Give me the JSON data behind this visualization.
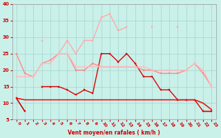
{
  "xlabel": "Vent moyen/en rafales ( km/h )",
  "background_color": "#caf0ea",
  "grid_color": "#aad8d2",
  "x": [
    0,
    1,
    2,
    3,
    4,
    5,
    6,
    7,
    8,
    9,
    10,
    11,
    12,
    13,
    14,
    15,
    16,
    17,
    18,
    19,
    20,
    21,
    22,
    23
  ],
  "series": [
    {
      "color": "#cc0000",
      "linewidth": 1.0,
      "marker": null,
      "values": [
        11.5,
        7.5,
        null,
        null,
        null,
        null,
        null,
        null,
        null,
        null,
        null,
        null,
        null,
        null,
        null,
        null,
        null,
        null,
        null,
        null,
        null,
        null,
        7.5,
        7.5
      ]
    },
    {
      "color": "#dd0000",
      "linewidth": 1.0,
      "marker": "s",
      "markersize": 2,
      "values": [
        11.5,
        7.5,
        null,
        15,
        15,
        15,
        14,
        12.5,
        14,
        13,
        25,
        25,
        22.5,
        25,
        22,
        18,
        18,
        14,
        14,
        11,
        11,
        11,
        7.5,
        7.5
      ]
    },
    {
      "color": "#ee1111",
      "linewidth": 1.2,
      "marker": null,
      "values": [
        11.5,
        11,
        11,
        11,
        11,
        11,
        11,
        11,
        11,
        11,
        11,
        11,
        11,
        11,
        11,
        11,
        11,
        11,
        11,
        11,
        11,
        11,
        10,
        8
      ]
    },
    {
      "color": "#ff8888",
      "linewidth": 1.0,
      "marker": "s",
      "markersize": 2,
      "values": [
        25,
        19,
        18,
        22,
        23,
        25,
        25,
        20,
        20,
        22,
        21,
        21,
        21,
        21,
        21,
        20,
        20,
        19,
        19,
        19,
        20,
        22,
        19,
        15
      ]
    },
    {
      "color": "#ffaaaa",
      "linewidth": 1.0,
      "marker": "s",
      "markersize": 2,
      "values": [
        null,
        null,
        null,
        29,
        null,
        25,
        29,
        25,
        29,
        29,
        36,
        37,
        32,
        33,
        null,
        null,
        33,
        null,
        null,
        33,
        null,
        22,
        null,
        null
      ]
    },
    {
      "color": "#ffbbbb",
      "linewidth": 1.0,
      "marker": "s",
      "markersize": 2,
      "values": [
        18,
        18,
        18,
        22,
        22,
        25,
        25,
        21,
        21,
        21,
        21,
        21,
        21,
        21,
        21,
        21,
        20,
        20,
        20,
        20,
        20,
        22,
        20,
        15
      ]
    }
  ],
  "ylim": [
    5,
    40
  ],
  "yticks": [
    5,
    10,
    15,
    20,
    25,
    30,
    35,
    40
  ],
  "xlim": [
    -0.5,
    23.5
  ]
}
